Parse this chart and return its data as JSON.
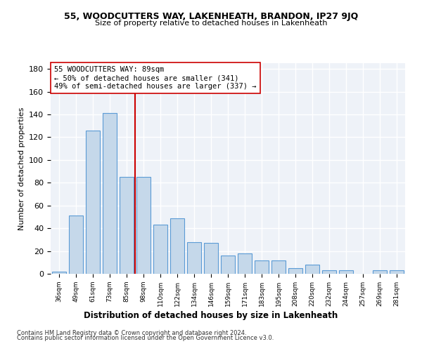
{
  "title1": "55, WOODCUTTERS WAY, LAKENHEATH, BRANDON, IP27 9JQ",
  "title2": "Size of property relative to detached houses in Lakenheath",
  "xlabel": "Distribution of detached houses by size in Lakenheath",
  "ylabel": "Number of detached properties",
  "categories": [
    "36sqm",
    "49sqm",
    "61sqm",
    "73sqm",
    "85sqm",
    "98sqm",
    "110sqm",
    "122sqm",
    "134sqm",
    "146sqm",
    "159sqm",
    "171sqm",
    "183sqm",
    "195sqm",
    "208sqm",
    "220sqm",
    "232sqm",
    "244sqm",
    "257sqm",
    "269sqm",
    "281sqm"
  ],
  "values": [
    2,
    51,
    126,
    141,
    85,
    85,
    43,
    49,
    28,
    27,
    16,
    18,
    12,
    12,
    5,
    8,
    3,
    3,
    0,
    3,
    3
  ],
  "bar_color": "#c5d8ea",
  "bar_edge_color": "#5b9bd5",
  "vline_color": "#cc0000",
  "annotation_text": "55 WOODCUTTERS WAY: 89sqm\n← 50% of detached houses are smaller (341)\n49% of semi-detached houses are larger (337) →",
  "annotation_box_color": "#ffffff",
  "annotation_box_edge": "#cc0000",
  "ylim": [
    0,
    185
  ],
  "yticks": [
    0,
    20,
    40,
    60,
    80,
    100,
    120,
    140,
    160,
    180
  ],
  "bg_color": "#eef2f8",
  "grid_color": "#ffffff",
  "footer1": "Contains HM Land Registry data © Crown copyright and database right 2024.",
  "footer2": "Contains public sector information licensed under the Open Government Licence v3.0."
}
